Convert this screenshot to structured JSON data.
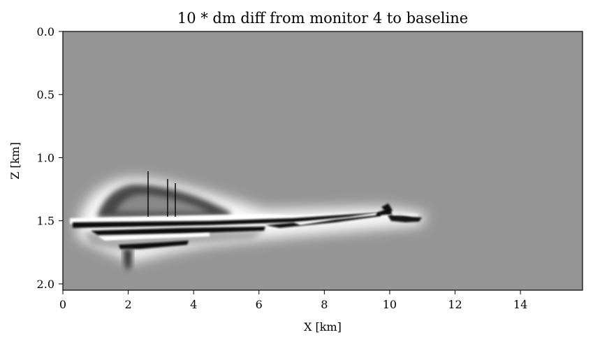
{
  "chart_data": {
    "type": "heatmap",
    "title": "10 * dm diff from monitor 4 to baseline",
    "xlabel": "X [km]",
    "ylabel": "Z [km]",
    "xlim": [
      0,
      15.9
    ],
    "ylim": [
      2.05,
      0.0
    ],
    "x_ticks": [
      0,
      2,
      4,
      6,
      8,
      10,
      12,
      14
    ],
    "x_tick_labels": [
      "0",
      "2",
      "4",
      "6",
      "8",
      "10",
      "12",
      "14"
    ],
    "y_ticks": [
      0.0,
      0.5,
      1.0,
      1.5,
      2.0
    ],
    "y_tick_labels": [
      "0.0",
      "0.5",
      "1.0",
      "1.5",
      "2.0"
    ],
    "colormap": "gray",
    "background_value_color": "#959595",
    "grid": false,
    "anomaly": {
      "x_extent_km": [
        0.2,
        11.0
      ],
      "z_extent_km": [
        1.12,
        1.9
      ],
      "description_features": [
        {
          "kind": "halo",
          "x": [
            0.8,
            5.2
          ],
          "z_top": 1.2,
          "z_base": 1.48
        },
        {
          "kind": "band-white",
          "x": [
            0.4,
            8.6
          ],
          "z": [
            1.46,
            1.5
          ]
        },
        {
          "kind": "band-black",
          "x": [
            0.2,
            10.9
          ],
          "z": [
            1.5,
            1.54
          ]
        },
        {
          "kind": "band-black",
          "x": [
            0.6,
            7.0
          ],
          "z": [
            1.58,
            1.62
          ]
        },
        {
          "kind": "band-black",
          "x": [
            1.2,
            4.2
          ],
          "z": [
            1.68,
            1.72
          ]
        },
        {
          "kind": "spike",
          "x": 2.62,
          "z": [
            1.11,
            1.49
          ]
        },
        {
          "kind": "spike",
          "x": 3.18,
          "z": [
            1.16,
            1.49
          ]
        },
        {
          "kind": "spike",
          "x": 3.43,
          "z": [
            1.19,
            1.49
          ]
        },
        {
          "kind": "plume",
          "x": [
            1.8,
            2.2
          ],
          "z": [
            1.7,
            1.9
          ]
        },
        {
          "kind": "bump",
          "x": [
            9.7,
            10.1
          ],
          "z": [
            1.37,
            1.46
          ]
        },
        {
          "kind": "lobe",
          "x": [
            9.9,
            11.0
          ],
          "z": [
            1.43,
            1.53
          ]
        }
      ]
    }
  }
}
